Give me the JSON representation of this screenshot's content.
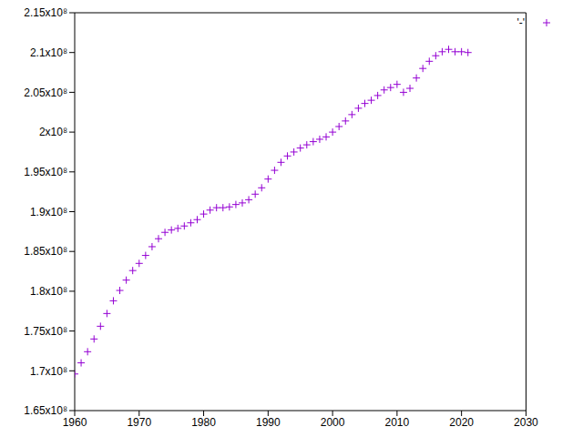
{
  "chart_data": {
    "type": "scatter",
    "legend": "upper right",
    "marker": "plus",
    "xlim": [
      1960,
      2030
    ],
    "xticks": [
      1960,
      1970,
      1980,
      1990,
      2000,
      2010,
      2020,
      2030
    ],
    "ylim": [
      165000000,
      215000000
    ],
    "yticks": [
      {
        "value": 165000000,
        "label": "1.65x10⁸"
      },
      {
        "value": 170000000,
        "label": "1.7x10⁸"
      },
      {
        "value": 175000000,
        "label": "1.75x10⁸"
      },
      {
        "value": 180000000,
        "label": "1.8x10⁸"
      },
      {
        "value": 185000000,
        "label": "1.85x10⁸"
      },
      {
        "value": 190000000,
        "label": "1.9x10⁸"
      },
      {
        "value": 195000000,
        "label": "1.95x10⁸"
      },
      {
        "value": 200000000,
        "label": "2x10⁸"
      },
      {
        "value": 205000000,
        "label": "2.05x10⁸"
      },
      {
        "value": 210000000,
        "label": "2.1x10⁸"
      },
      {
        "value": 215000000,
        "label": "2.15x10⁸"
      }
    ],
    "x": [
      1960,
      1961,
      1962,
      1963,
      1964,
      1965,
      1966,
      1967,
      1968,
      1969,
      1970,
      1971,
      1972,
      1973,
      1974,
      1975,
      1976,
      1977,
      1978,
      1979,
      1980,
      1981,
      1982,
      1983,
      1984,
      1985,
      1986,
      1987,
      1988,
      1989,
      1990,
      1991,
      1992,
      1993,
      1994,
      1995,
      1996,
      1997,
      1998,
      1999,
      2000,
      2001,
      2002,
      2003,
      2004,
      2005,
      2006,
      2007,
      2008,
      2009,
      2010,
      2011,
      2012,
      2013,
      2014,
      2015,
      2016,
      2017,
      2018,
      2019,
      2020,
      2021
    ],
    "series": [
      {
        "name": "'-'",
        "color": "#9400d3",
        "values": [
          169600000,
          171000000,
          172400000,
          174000000,
          175600000,
          177200000,
          178800000,
          180100000,
          181400000,
          182600000,
          183500000,
          184500000,
          185600000,
          186600000,
          187400000,
          187700000,
          187900000,
          188200000,
          188600000,
          189000000,
          189700000,
          190200000,
          190500000,
          190500000,
          190600000,
          190900000,
          191100000,
          191500000,
          192200000,
          193000000,
          194100000,
          195200000,
          196200000,
          197000000,
          197500000,
          198000000,
          198400000,
          198800000,
          199100000,
          199400000,
          200000000,
          200700000,
          201400000,
          202200000,
          203000000,
          203600000,
          204000000,
          204600000,
          205300000,
          205600000,
          206000000,
          205000000,
          205500000,
          206800000,
          208000000,
          208900000,
          209600000,
          210100000,
          210400000,
          210100000,
          210100000,
          210000000
        ]
      }
    ]
  }
}
